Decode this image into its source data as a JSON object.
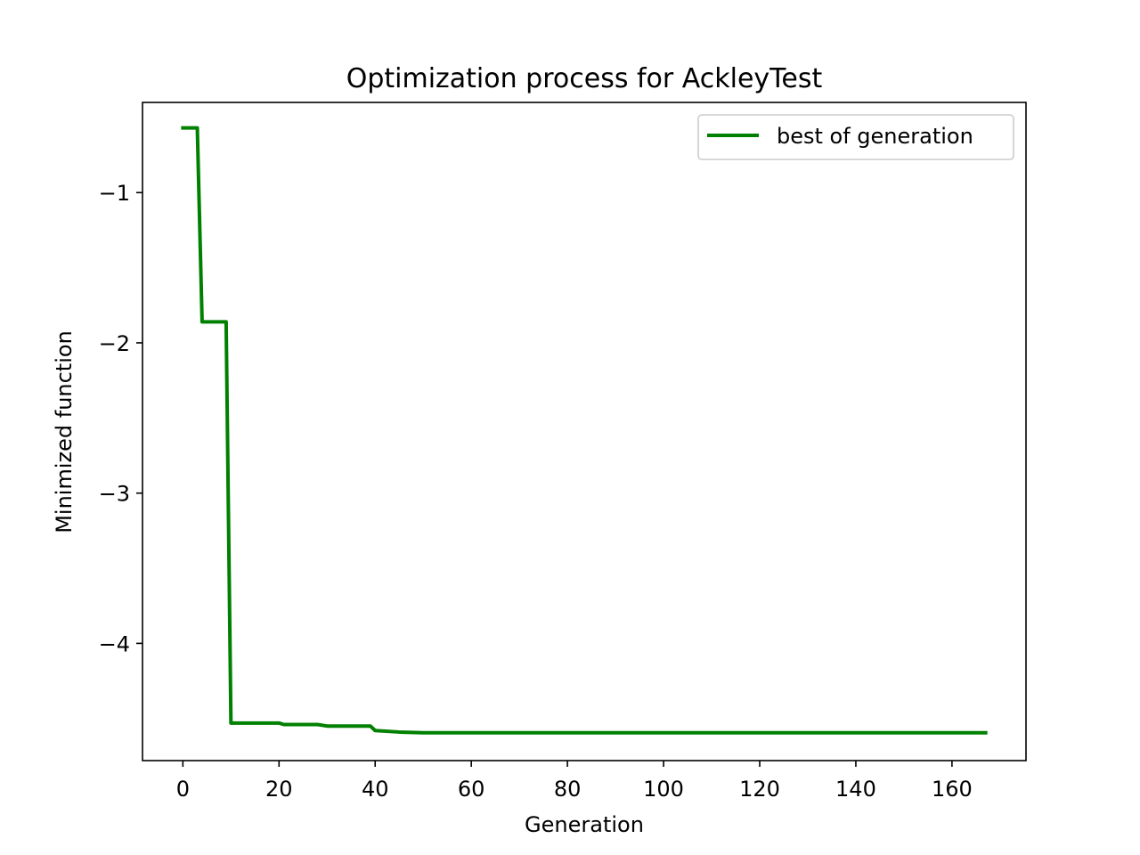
{
  "chart_data": {
    "type": "line",
    "title": "Optimization process for AckleyTest",
    "xlabel": "Generation",
    "ylabel": "Minimized function",
    "xlim": [
      -8.4,
      175.4
    ],
    "ylim": [
      -4.78,
      -0.4
    ],
    "xticks": [
      0,
      20,
      40,
      60,
      80,
      100,
      120,
      140,
      160
    ],
    "yticks": [
      -1,
      -2,
      -3,
      -4
    ],
    "ytick_labels": [
      "−1",
      "−2",
      "−3",
      "−4"
    ],
    "grid": false,
    "legend": {
      "position": "top-right"
    },
    "series": [
      {
        "name": "best of generation",
        "color": "#008000",
        "x": [
          0,
          3,
          4,
          9,
          10,
          20,
          21,
          28,
          30,
          39,
          40,
          45,
          50,
          60,
          167
        ],
        "y": [
          -0.57,
          -0.57,
          -1.86,
          -1.86,
          -4.53,
          -4.53,
          -4.54,
          -4.54,
          -4.55,
          -4.55,
          -4.58,
          -4.59,
          -4.595,
          -4.595,
          -4.595
        ]
      }
    ]
  }
}
